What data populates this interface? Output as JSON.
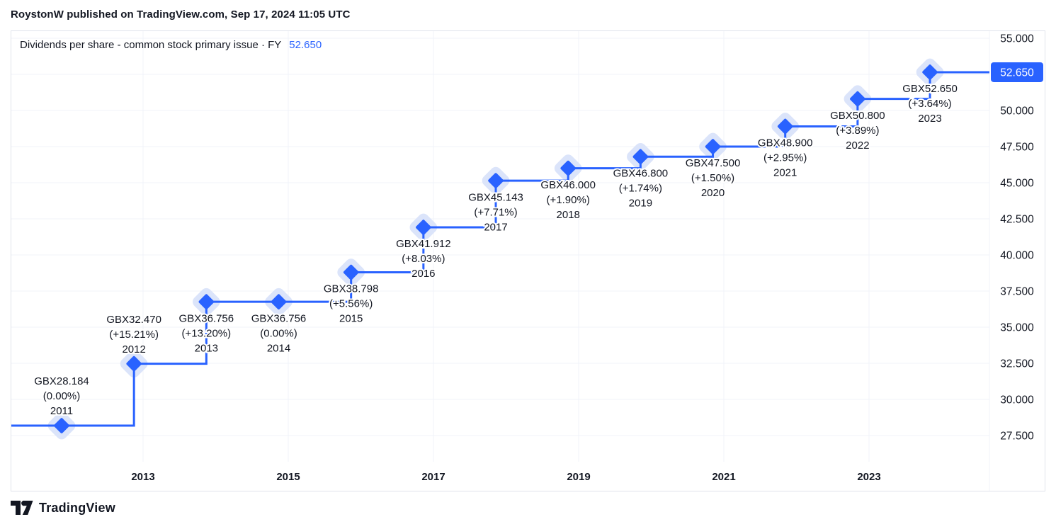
{
  "header": {
    "byline": "RoystonW published on TradingView.com, Sep 17, 2024 11:05 UTC"
  },
  "title": {
    "text": "Dividends per share - common stock primary issue · FY",
    "value": "52.650"
  },
  "colors": {
    "accent": "#2962FF",
    "text": "#131722",
    "grid": "#f0f3fa",
    "halo": "#dbe4fa",
    "border": "#e0e3eb",
    "badge_text": "#ffffff"
  },
  "chart_data": {
    "type": "line",
    "step": "after",
    "title": "Dividends per share - common stock primary issue · FY",
    "unit_prefix": "GBX",
    "grid": true,
    "legend_position": "top-left",
    "x_years": [
      2011,
      2012,
      2013,
      2014,
      2015,
      2016,
      2017,
      2018,
      2019,
      2020,
      2021,
      2022,
      2023
    ],
    "series": [
      {
        "name": "Dividends per share - common stock primary issue FY",
        "values": [
          28.184,
          32.47,
          36.756,
          36.756,
          38.798,
          41.912,
          45.143,
          46.0,
          46.8,
          47.5,
          48.9,
          50.8,
          52.65
        ]
      }
    ],
    "point_labels": [
      {
        "value": "GBX28.184",
        "change": "(0.00%)",
        "year": "2011",
        "position": "above"
      },
      {
        "value": "GBX32.470",
        "change": "(+15.21%)",
        "year": "2012",
        "position": "above"
      },
      {
        "value": "GBX36.756",
        "change": "(+13.20%)",
        "year": "2013",
        "position": "below"
      },
      {
        "value": "GBX36.756",
        "change": "(0.00%)",
        "year": "2014",
        "position": "below"
      },
      {
        "value": "GBX38.798",
        "change": "(+5.56%)",
        "year": "2015",
        "position": "below"
      },
      {
        "value": "GBX41.912",
        "change": "(+8.03%)",
        "year": "2016",
        "position": "below"
      },
      {
        "value": "GBX45.143",
        "change": "(+7.71%)",
        "year": "2017",
        "position": "below"
      },
      {
        "value": "GBX46.000",
        "change": "(+1.90%)",
        "year": "2018",
        "position": "below"
      },
      {
        "value": "GBX46.800",
        "change": "(+1.74%)",
        "year": "2019",
        "position": "below"
      },
      {
        "value": "GBX47.500",
        "change": "(+1.50%)",
        "year": "2020",
        "position": "below"
      },
      {
        "value": "GBX48.900",
        "change": "(+2.95%)",
        "year": "2021",
        "position": "below"
      },
      {
        "value": "GBX50.800",
        "change": "(+3.89%)",
        "year": "2022",
        "position": "below"
      },
      {
        "value": "GBX52.650",
        "change": "(+3.64%)",
        "year": "2023",
        "position": "below"
      }
    ],
    "ylim": [
      27.5,
      55.0
    ],
    "y_grid_step": 2.5,
    "y_ticks": [
      {
        "value": 55.0,
        "label": "55.000"
      },
      {
        "value": 50.0,
        "label": "50.000"
      },
      {
        "value": 47.5,
        "label": "47.500"
      },
      {
        "value": 45.0,
        "label": "45.000"
      },
      {
        "value": 42.5,
        "label": "42.500"
      },
      {
        "value": 40.0,
        "label": "40.000"
      },
      {
        "value": 37.5,
        "label": "37.500"
      },
      {
        "value": 35.0,
        "label": "35.000"
      },
      {
        "value": 32.5,
        "label": "32.500"
      },
      {
        "value": 30.0,
        "label": "30.000"
      },
      {
        "value": 27.5,
        "label": "27.500"
      }
    ],
    "x_ticks": [
      {
        "value": 2013,
        "label": "2013"
      },
      {
        "value": 2015,
        "label": "2015"
      },
      {
        "value": 2017,
        "label": "2017"
      },
      {
        "value": 2019,
        "label": "2019"
      },
      {
        "value": 2021,
        "label": "2021"
      },
      {
        "value": 2023,
        "label": "2023"
      }
    ],
    "last_price": {
      "value": 52.65,
      "label": "52.650"
    }
  },
  "watermark": {
    "brand": "TradingView"
  }
}
